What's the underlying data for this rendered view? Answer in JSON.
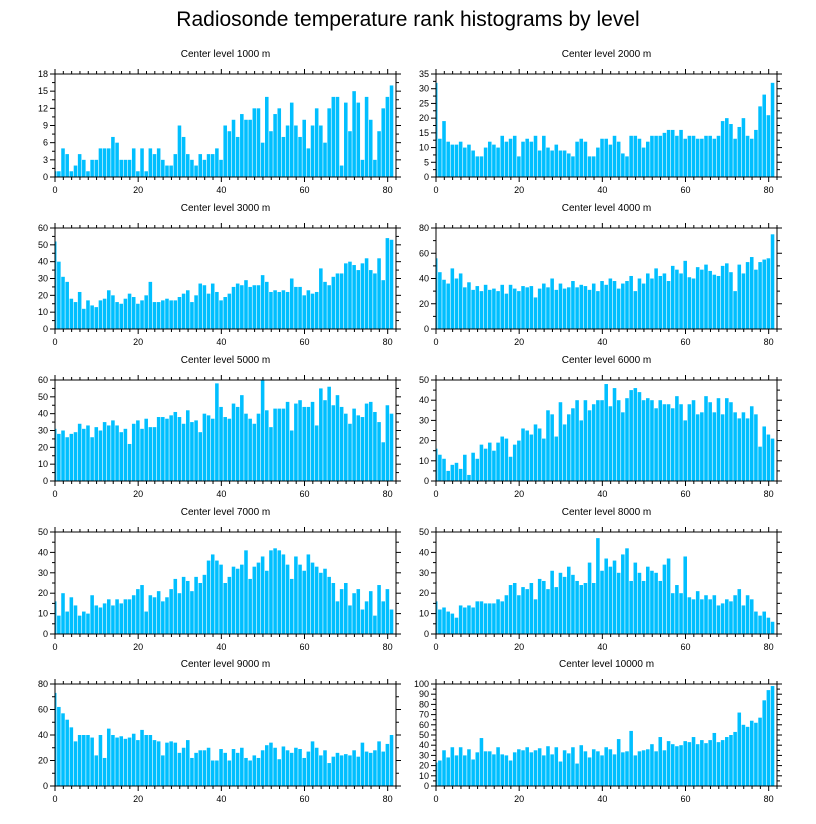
{
  "title": "Radiosonde temperature rank histograms by level",
  "bar_color": "#00BFFF",
  "chart_data": [
    {
      "type": "bar",
      "title": "Center level 1000 m",
      "ylim": [
        0,
        18
      ],
      "yticks": [
        0,
        3,
        6,
        9,
        12,
        15,
        18
      ],
      "xlim": [
        0,
        82
      ],
      "xticks": [
        0,
        20,
        40,
        60,
        80
      ],
      "values": [
        1,
        1,
        5,
        4,
        1,
        2,
        4,
        3,
        1,
        3,
        3,
        5,
        5,
        5,
        7,
        6,
        3,
        3,
        3,
        5,
        1,
        5,
        1,
        5,
        4,
        5,
        3,
        2,
        2,
        4,
        9,
        7,
        4,
        3,
        2,
        4,
        3,
        4,
        4,
        5,
        3,
        9,
        8,
        10,
        7,
        11,
        10,
        10,
        12,
        12,
        6,
        14,
        8,
        11,
        12,
        7,
        9,
        13,
        9,
        7,
        10,
        5,
        9,
        12,
        9,
        6,
        12,
        14,
        14,
        2,
        13,
        8,
        15,
        13,
        3,
        14,
        10,
        3,
        8,
        12,
        14,
        16
      ]
    },
    {
      "type": "bar",
      "title": "Center level 2000 m",
      "ylim": [
        0,
        35
      ],
      "yticks": [
        0,
        5,
        10,
        15,
        20,
        25,
        30,
        35
      ],
      "xlim": [
        0,
        82
      ],
      "xticks": [
        0,
        20,
        40,
        60,
        80
      ],
      "values": [
        32,
        13,
        19,
        12,
        11,
        11,
        12,
        10,
        11,
        9,
        7,
        7,
        10,
        12,
        11,
        10,
        14,
        12,
        13,
        14,
        7,
        12,
        13,
        12,
        14,
        9,
        14,
        10,
        9,
        11,
        9,
        9,
        8,
        7,
        12,
        13,
        12,
        7,
        7,
        10,
        13,
        13,
        11,
        14,
        12,
        8,
        7,
        14,
        14,
        13,
        10,
        12,
        14,
        14,
        14,
        15,
        16,
        16,
        14,
        16,
        13,
        14,
        14,
        13,
        13,
        14,
        14,
        13,
        14,
        19,
        20,
        18,
        13,
        17,
        20,
        14,
        13,
        16,
        24,
        28,
        21,
        32
      ]
    },
    {
      "type": "bar",
      "title": "Center level 3000 m",
      "ylim": [
        0,
        60
      ],
      "yticks": [
        0,
        10,
        20,
        30,
        40,
        50,
        60
      ],
      "xlim": [
        0,
        82
      ],
      "xticks": [
        0,
        20,
        40,
        60,
        80
      ],
      "values": [
        52,
        40,
        31,
        28,
        18,
        16,
        22,
        12,
        17,
        14,
        13,
        17,
        18,
        23,
        20,
        16,
        15,
        18,
        21,
        19,
        15,
        17,
        20,
        28,
        16,
        16,
        17,
        18,
        17,
        17,
        19,
        21,
        23,
        16,
        20,
        27,
        26,
        21,
        27,
        22,
        17,
        19,
        21,
        25,
        27,
        26,
        29,
        25,
        26,
        26,
        32,
        28,
        22,
        23,
        22,
        23,
        22,
        30,
        25,
        25,
        20,
        23,
        21,
        22,
        36,
        28,
        26,
        31,
        33,
        33,
        39,
        40,
        38,
        35,
        39,
        42,
        35,
        33,
        42,
        29,
        54,
        53
      ]
    },
    {
      "type": "bar",
      "title": "Center level 4000 m",
      "ylim": [
        0,
        80
      ],
      "yticks": [
        0,
        20,
        40,
        60,
        80
      ],
      "xlim": [
        0,
        82
      ],
      "xticks": [
        0,
        20,
        40,
        60,
        80
      ],
      "values": [
        56,
        45,
        39,
        36,
        48,
        40,
        44,
        33,
        37,
        31,
        34,
        30,
        35,
        31,
        32,
        30,
        35,
        28,
        35,
        32,
        30,
        34,
        33,
        34,
        25,
        32,
        36,
        33,
        40,
        31,
        36,
        32,
        33,
        38,
        33,
        35,
        34,
        31,
        36,
        30,
        38,
        35,
        40,
        38,
        32,
        36,
        38,
        42,
        30,
        40,
        36,
        44,
        40,
        48,
        42,
        44,
        38,
        50,
        47,
        44,
        54,
        41,
        40,
        49,
        47,
        51,
        46,
        43,
        42,
        50,
        52,
        45,
        30,
        51,
        44,
        53,
        57,
        47,
        53,
        55,
        56,
        75
      ]
    },
    {
      "type": "bar",
      "title": "Center level 5000 m",
      "ylim": [
        0,
        60
      ],
      "yticks": [
        0,
        10,
        20,
        30,
        40,
        50,
        60
      ],
      "xlim": [
        0,
        82
      ],
      "xticks": [
        0,
        20,
        40,
        60,
        80
      ],
      "values": [
        31,
        28,
        30,
        26,
        28,
        29,
        34,
        31,
        33,
        26,
        32,
        30,
        35,
        33,
        36,
        33,
        29,
        31,
        22,
        34,
        36,
        31,
        37,
        32,
        32,
        38,
        38,
        37,
        39,
        41,
        38,
        34,
        42,
        35,
        36,
        29,
        40,
        39,
        37,
        58,
        44,
        38,
        37,
        46,
        44,
        51,
        40,
        37,
        34,
        40,
        60,
        42,
        32,
        43,
        43,
        43,
        47,
        30,
        46,
        48,
        44,
        44,
        47,
        33,
        55,
        48,
        56,
        45,
        51,
        44,
        40,
        34,
        43,
        39,
        38,
        46,
        47,
        41,
        35,
        23,
        45,
        40
      ]
    },
    {
      "type": "bar",
      "title": "Center level 6000 m",
      "ylim": [
        0,
        50
      ],
      "yticks": [
        0,
        10,
        20,
        30,
        40,
        50
      ],
      "xlim": [
        0,
        82
      ],
      "xticks": [
        0,
        20,
        40,
        60,
        80
      ],
      "values": [
        16,
        13,
        11,
        5,
        8,
        9,
        6,
        13,
        3,
        14,
        11,
        18,
        16,
        19,
        15,
        19,
        22,
        21,
        12,
        18,
        20,
        26,
        25,
        23,
        28,
        26,
        21,
        35,
        33,
        22,
        39,
        28,
        33,
        36,
        40,
        30,
        40,
        35,
        38,
        40,
        40,
        48,
        37,
        46,
        40,
        34,
        41,
        45,
        46,
        44,
        40,
        41,
        40,
        36,
        40,
        38,
        38,
        36,
        42,
        38,
        30,
        38,
        40,
        33,
        34,
        42,
        39,
        34,
        41,
        33,
        41,
        39,
        34,
        31,
        34,
        31,
        37,
        33,
        17,
        27,
        23,
        21
      ]
    },
    {
      "type": "bar",
      "title": "Center level 7000 m",
      "ylim": [
        0,
        50
      ],
      "yticks": [
        0,
        10,
        20,
        30,
        40,
        50
      ],
      "xlim": [
        0,
        82
      ],
      "xticks": [
        0,
        20,
        40,
        60,
        80
      ],
      "values": [
        16,
        9,
        20,
        11,
        18,
        14,
        9,
        11,
        10,
        19,
        14,
        13,
        15,
        17,
        14,
        17,
        15,
        17,
        17,
        19,
        22,
        24,
        11,
        19,
        18,
        21,
        16,
        18,
        22,
        27,
        20,
        28,
        26,
        21,
        28,
        25,
        29,
        36,
        39,
        36,
        34,
        25,
        28,
        33,
        32,
        34,
        41,
        27,
        33,
        35,
        38,
        31,
        41,
        42,
        41,
        39,
        34,
        27,
        38,
        34,
        31,
        39,
        35,
        33,
        30,
        32,
        28,
        25,
        16,
        22,
        25,
        14,
        20,
        22,
        12,
        16,
        21,
        9,
        24,
        16,
        22,
        12
      ]
    },
    {
      "type": "bar",
      "title": "Center level 8000 m",
      "ylim": [
        0,
        50
      ],
      "yticks": [
        0,
        10,
        20,
        30,
        40,
        50
      ],
      "xlim": [
        0,
        82
      ],
      "xticks": [
        0,
        20,
        40,
        60,
        80
      ],
      "values": [
        16,
        12,
        13,
        11,
        10,
        8,
        14,
        13,
        14,
        13,
        16,
        16,
        15,
        15,
        15,
        17,
        16,
        19,
        24,
        25,
        19,
        23,
        22,
        25,
        17,
        27,
        26,
        22,
        31,
        23,
        30,
        28,
        33,
        29,
        26,
        24,
        25,
        35,
        25,
        47,
        31,
        37,
        33,
        36,
        30,
        39,
        42,
        26,
        35,
        30,
        26,
        33,
        31,
        30,
        26,
        34,
        37,
        20,
        24,
        20,
        38,
        18,
        17,
        21,
        17,
        19,
        17,
        19,
        14,
        15,
        17,
        16,
        19,
        22,
        14,
        19,
        17,
        11,
        9,
        11,
        8,
        6
      ]
    },
    {
      "type": "bar",
      "title": "Center level 9000 m",
      "ylim": [
        0,
        80
      ],
      "yticks": [
        0,
        20,
        40,
        60,
        80
      ],
      "xlim": [
        0,
        82
      ],
      "xticks": [
        0,
        20,
        40,
        60,
        80
      ],
      "values": [
        73,
        62,
        57,
        52,
        46,
        35,
        40,
        40,
        40,
        38,
        24,
        40,
        22,
        45,
        40,
        38,
        39,
        37,
        38,
        41,
        36,
        44,
        40,
        40,
        36,
        35,
        24,
        34,
        35,
        34,
        26,
        30,
        36,
        22,
        26,
        28,
        28,
        30,
        20,
        20,
        29,
        26,
        20,
        29,
        26,
        30,
        22,
        20,
        24,
        22,
        28,
        32,
        34,
        30,
        21,
        31,
        28,
        26,
        30,
        29,
        22,
        27,
        35,
        30,
        24,
        28,
        18,
        23,
        26,
        24,
        25,
        24,
        28,
        23,
        34,
        27,
        26,
        28,
        35,
        27,
        33,
        40
      ]
    },
    {
      "type": "bar",
      "title": "Center level 10000 m",
      "ylim": [
        0,
        100
      ],
      "yticks": [
        0,
        10,
        20,
        30,
        40,
        50,
        60,
        70,
        80,
        90,
        100
      ],
      "xlim": [
        0,
        82
      ],
      "xticks": [
        0,
        20,
        40,
        60,
        80
      ],
      "values": [
        23,
        25,
        35,
        28,
        38,
        30,
        38,
        30,
        36,
        26,
        33,
        47,
        34,
        34,
        31,
        38,
        31,
        30,
        25,
        33,
        36,
        35,
        38,
        33,
        35,
        37,
        30,
        39,
        31,
        38,
        24,
        35,
        32,
        38,
        22,
        40,
        34,
        28,
        36,
        34,
        30,
        38,
        36,
        31,
        46,
        33,
        34,
        54,
        30,
        34,
        35,
        36,
        41,
        34,
        48,
        35,
        44,
        41,
        39,
        40,
        44,
        43,
        48,
        41,
        45,
        42,
        45,
        52,
        43,
        45,
        48,
        50,
        53,
        72,
        60,
        58,
        64,
        62,
        67,
        84,
        94,
        98
      ]
    }
  ]
}
